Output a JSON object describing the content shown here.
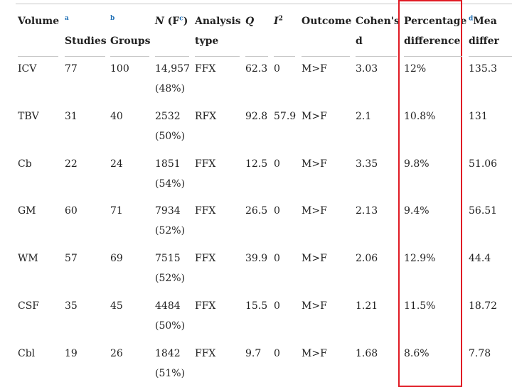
{
  "table": {
    "headers": [
      {
        "text": "Volume"
      },
      {
        "sup": "a",
        "text": "Studies"
      },
      {
        "sup": "b",
        "text": "Groups"
      },
      {
        "italic": "N",
        "text": "(F",
        "sup": "c",
        "end": ")"
      },
      {
        "text": "Analysis",
        "text2": "type"
      },
      {
        "italic": "Q"
      },
      {
        "italic": "I",
        "sup": "2"
      },
      {
        "text": "Outcome"
      },
      {
        "text": "Cohen's",
        "text2": "d"
      },
      {
        "text": "Percentage",
        "text2": "difference"
      },
      {
        "sup": "d",
        "text": "Mea",
        "text2": "differ"
      }
    ],
    "rows": [
      [
        "ICV",
        "77",
        "100",
        [
          "14,957",
          "(48%)"
        ],
        "FFX",
        "62.3",
        "0",
        "M>F",
        "3.03",
        "12%",
        "135.3"
      ],
      [
        "TBV",
        "31",
        "40",
        [
          "2532",
          "(50%)"
        ],
        "RFX",
        "92.8",
        "57.9",
        "M>F",
        "2.1",
        "10.8%",
        "131"
      ],
      [
        "Cb",
        "22",
        "24",
        [
          "1851",
          "(54%)"
        ],
        "FFX",
        "12.5",
        "0",
        "M>F",
        "3.35",
        "9.8%",
        "51.06"
      ],
      [
        "GM",
        "60",
        "71",
        [
          "7934",
          "(52%)"
        ],
        "FFX",
        "26.5",
        "0",
        "M>F",
        "2.13",
        "9.4%",
        "56.51"
      ],
      [
        "WM",
        "57",
        "69",
        [
          "7515",
          "(52%)"
        ],
        "FFX",
        "39.9",
        "0",
        "M>F",
        "2.06",
        "12.9%",
        "44.4"
      ],
      [
        "CSF",
        "35",
        "45",
        [
          "4484",
          "(50%)"
        ],
        "FFX",
        "15.5",
        "0",
        "M>F",
        "1.21",
        "11.5%",
        "18.72"
      ],
      [
        "Cbl",
        "19",
        "26",
        [
          "1842",
          "(51%)"
        ],
        "FFX",
        "9.7",
        "0",
        "M>F",
        "1.68",
        "8.6%",
        "7.78"
      ]
    ]
  }
}
